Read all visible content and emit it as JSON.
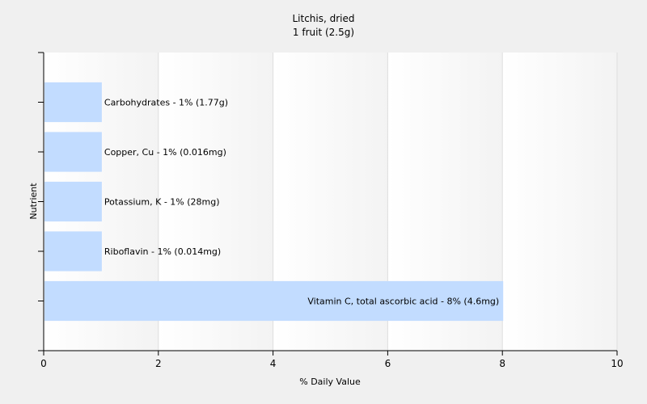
{
  "chart_data": {
    "type": "bar",
    "orientation": "horizontal",
    "title": "Litchis, dried",
    "subtitle": "1 fruit (2.5g)",
    "xlabel": "% Daily Value",
    "ylabel": "Nutrient",
    "xlim": [
      0,
      10
    ],
    "xticks": [
      0,
      2,
      4,
      6,
      8,
      10
    ],
    "grid": "vertical",
    "bar_color": "#c2dcff",
    "categories": [
      "Carbohydrates",
      "Copper, Cu",
      "Potassium, K",
      "Riboflavin",
      "Vitamin C, total ascorbic acid"
    ],
    "values": [
      1,
      1,
      1,
      1,
      8
    ],
    "labels": [
      "Carbohydrates - 1% (1.77g)",
      "Copper, Cu - 1% (0.016mg)",
      "Potassium, K - 1% (28mg)",
      "Riboflavin - 1% (0.014mg)",
      "Vitamin C, total ascorbic acid - 8% (4.6mg)"
    ]
  }
}
